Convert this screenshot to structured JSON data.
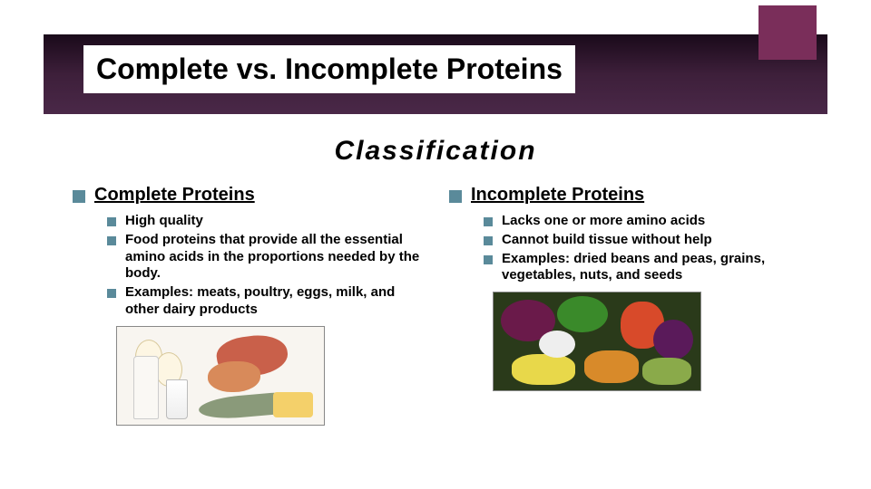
{
  "title": "Complete vs. Incomplete Proteins",
  "classification_heading": "Classification",
  "accent_color": "#7a2e5a",
  "bullet_color": "#5a8a9a",
  "title_bar_gradient": [
    "#1a0a1a",
    "#3d1f3a",
    "#4a2848"
  ],
  "columns": {
    "left": {
      "heading": "Complete Proteins",
      "items": [
        "High quality",
        "Food proteins that provide all the essential amino acids in the proportions needed by the body.",
        "Examples: meats, poultry, eggs, milk, and other dairy products"
      ],
      "image_desc": "dairy-meat-eggs-fish"
    },
    "right": {
      "heading": "Incomplete Proteins",
      "items": [
        "Lacks one or more amino acids",
        "Cannot build tissue without help",
        "Examples: dried beans and peas, grains, vegetables, nuts, and seeds"
      ],
      "image_desc": "vegetables-beans-grains"
    }
  },
  "typography": {
    "title_fontsize": 32,
    "classification_fontsize": 30,
    "column_heading_fontsize": 20,
    "item_fontsize": 15
  }
}
